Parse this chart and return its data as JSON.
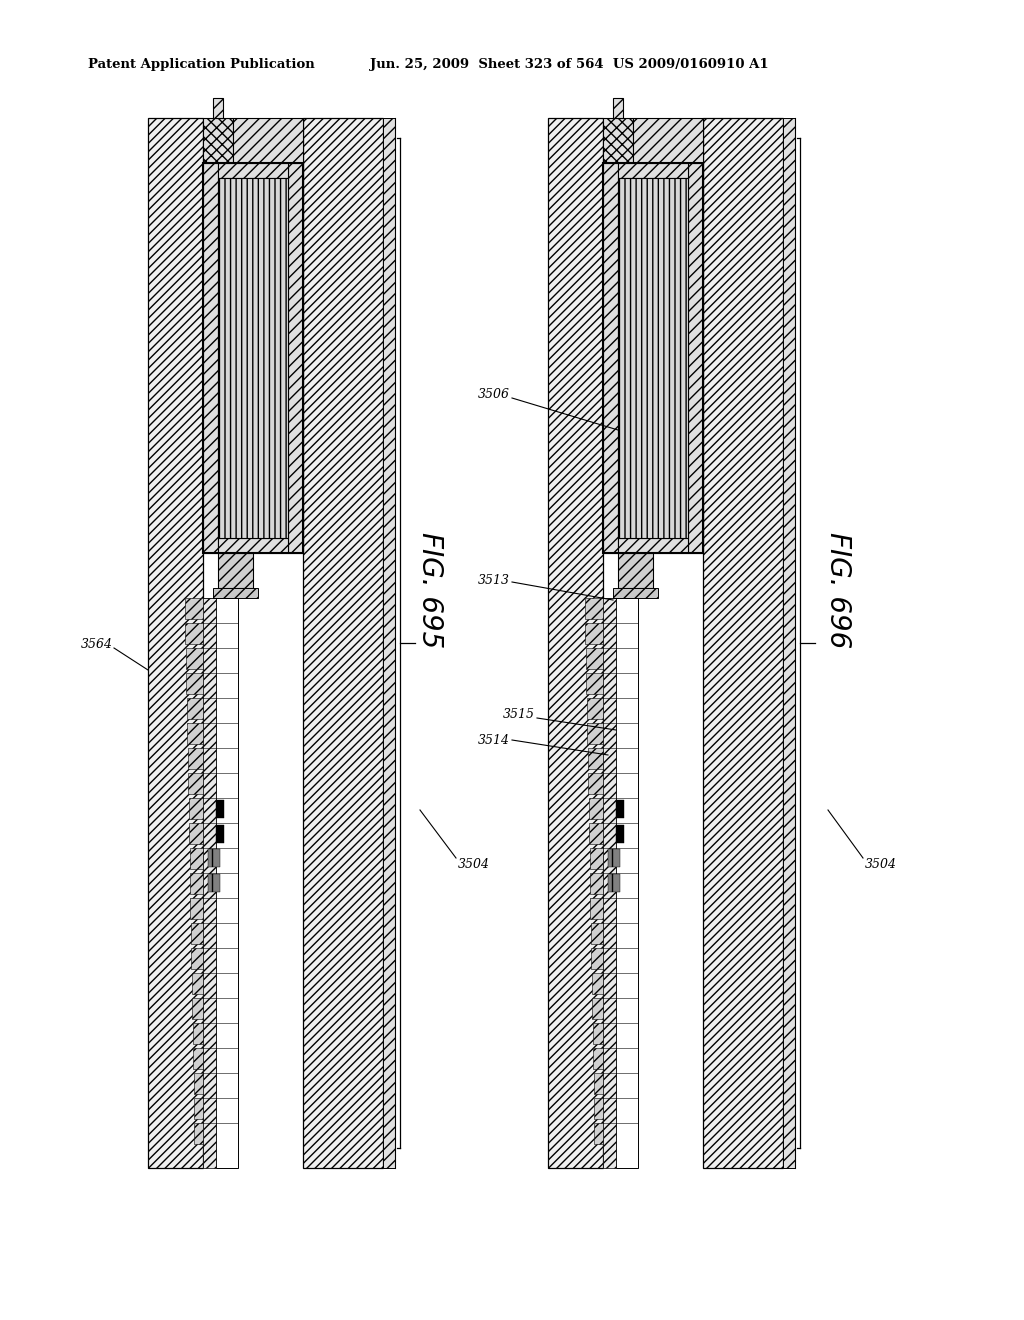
{
  "bg_color": "#ffffff",
  "header_left": "Patent Application Publication",
  "header_right": "Jun. 25, 2009  Sheet 323 of 564  US 2009/0160910 A1",
  "fig695_label": "FIG. 695",
  "fig696_label": "FIG. 696",
  "label_3504_left": "3504",
  "label_3564": "3564",
  "label_3504_right": "3504",
  "label_3506": "3506",
  "label_3513": "3513",
  "label_3514": "3514",
  "label_3515": "3515"
}
